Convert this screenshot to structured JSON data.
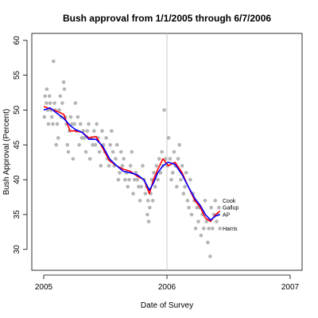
{
  "chart_data": {
    "type": "scatter",
    "title": "Bush approval from 1/1/2005 through 6/7/2006",
    "xlabel": "Date of Survey",
    "ylabel": "Bush Approval (Percent)",
    "xlim": [
      "2005-01-01",
      "2007-01-01"
    ],
    "ylim": [
      27,
      61
    ],
    "x_ticks": [
      "2005",
      "2006",
      "2007"
    ],
    "y_ticks": [
      30,
      35,
      40,
      45,
      50,
      55,
      60
    ],
    "reference_line": {
      "x": "2006-01-01",
      "color": "#c8c8c8"
    },
    "points_color": "#b4b4b4",
    "points": [
      [
        "2005-01-03",
        49
      ],
      [
        "2005-01-05",
        52
      ],
      [
        "2005-01-09",
        51
      ],
      [
        "2005-01-10",
        53
      ],
      [
        "2005-01-13",
        50
      ],
      [
        "2005-01-15",
        48
      ],
      [
        "2005-01-18",
        52
      ],
      [
        "2005-01-20",
        51
      ],
      [
        "2005-01-23",
        50
      ],
      [
        "2005-01-25",
        49
      ],
      [
        "2005-01-28",
        48
      ],
      [
        "2005-01-30",
        57
      ],
      [
        "2005-02-02",
        51
      ],
      [
        "2005-02-04",
        50
      ],
      [
        "2005-02-07",
        45
      ],
      [
        "2005-02-10",
        48
      ],
      [
        "2005-02-13",
        46
      ],
      [
        "2005-02-16",
        50
      ],
      [
        "2005-02-19",
        52
      ],
      [
        "2005-02-22",
        49
      ],
      [
        "2005-02-25",
        51
      ],
      [
        "2005-03-01",
        54
      ],
      [
        "2005-03-03",
        53
      ],
      [
        "2005-03-06",
        49
      ],
      [
        "2005-03-09",
        48
      ],
      [
        "2005-03-12",
        45
      ],
      [
        "2005-03-15",
        44
      ],
      [
        "2005-03-18",
        47
      ],
      [
        "2005-03-22",
        49
      ],
      [
        "2005-03-26",
        48
      ],
      [
        "2005-03-29",
        43
      ],
      [
        "2005-04-02",
        48
      ],
      [
        "2005-04-05",
        51
      ],
      [
        "2005-04-08",
        47
      ],
      [
        "2005-04-12",
        49
      ],
      [
        "2005-04-16",
        45
      ],
      [
        "2005-04-20",
        48
      ],
      [
        "2005-04-24",
        46
      ],
      [
        "2005-04-28",
        47
      ],
      [
        "2005-05-02",
        46
      ],
      [
        "2005-05-06",
        44
      ],
      [
        "2005-05-10",
        47
      ],
      [
        "2005-05-14",
        48
      ],
      [
        "2005-05-18",
        43
      ],
      [
        "2005-05-22",
        46
      ],
      [
        "2005-05-26",
        45
      ],
      [
        "2005-05-30",
        47
      ],
      [
        "2005-06-03",
        45
      ],
      [
        "2005-06-07",
        48
      ],
      [
        "2005-06-11",
        46
      ],
      [
        "2005-06-15",
        44
      ],
      [
        "2005-06-19",
        42
      ],
      [
        "2005-06-23",
        47
      ],
      [
        "2005-06-27",
        45
      ],
      [
        "2005-07-01",
        44
      ],
      [
        "2005-07-05",
        46
      ],
      [
        "2005-07-09",
        43
      ],
      [
        "2005-07-13",
        42
      ],
      [
        "2005-07-17",
        45
      ],
      [
        "2005-07-21",
        47
      ],
      [
        "2005-07-25",
        44
      ],
      [
        "2005-07-29",
        42
      ],
      [
        "2005-08-02",
        43
      ],
      [
        "2005-08-06",
        45
      ],
      [
        "2005-08-10",
        40
      ],
      [
        "2005-08-14",
        41
      ],
      [
        "2005-08-18",
        44
      ],
      [
        "2005-08-22",
        42
      ],
      [
        "2005-08-26",
        43
      ],
      [
        "2005-08-30",
        40
      ],
      [
        "2005-09-03",
        41
      ],
      [
        "2005-09-07",
        39
      ],
      [
        "2005-09-11",
        40
      ],
      [
        "2005-09-15",
        42
      ],
      [
        "2005-09-19",
        44
      ],
      [
        "2005-09-23",
        38
      ],
      [
        "2005-09-27",
        40
      ],
      [
        "2005-10-01",
        41
      ],
      [
        "2005-10-05",
        40
      ],
      [
        "2005-10-09",
        39
      ],
      [
        "2005-10-13",
        37
      ],
      [
        "2005-10-17",
        39
      ],
      [
        "2005-10-21",
        42
      ],
      [
        "2005-10-25",
        40
      ],
      [
        "2005-10-29",
        38
      ],
      [
        "2005-11-02",
        39
      ],
      [
        "2005-11-04",
        35
      ],
      [
        "2005-11-06",
        37
      ],
      [
        "2005-11-08",
        34
      ],
      [
        "2005-11-11",
        36
      ],
      [
        "2005-11-14",
        38
      ],
      [
        "2005-11-17",
        40
      ],
      [
        "2005-11-20",
        37
      ],
      [
        "2005-11-23",
        41
      ],
      [
        "2005-11-27",
        39
      ],
      [
        "2005-12-01",
        42
      ],
      [
        "2005-12-05",
        40
      ],
      [
        "2005-12-09",
        43
      ],
      [
        "2005-12-13",
        41
      ],
      [
        "2005-12-17",
        44
      ],
      [
        "2005-12-20",
        42
      ],
      [
        "2005-12-24",
        50
      ],
      [
        "2005-12-28",
        43
      ],
      [
        "2006-01-02",
        42
      ],
      [
        "2006-01-06",
        46
      ],
      [
        "2006-01-10",
        43
      ],
      [
        "2006-01-14",
        40
      ],
      [
        "2006-01-18",
        41
      ],
      [
        "2006-01-22",
        44
      ],
      [
        "2006-01-26",
        42
      ],
      [
        "2006-01-30",
        39
      ],
      [
        "2006-02-03",
        43
      ],
      [
        "2006-02-07",
        45
      ],
      [
        "2006-02-11",
        40
      ],
      [
        "2006-02-15",
        42
      ],
      [
        "2006-02-19",
        38
      ],
      [
        "2006-02-23",
        39
      ],
      [
        "2006-02-27",
        41
      ],
      [
        "2006-03-03",
        37
      ],
      [
        "2006-03-07",
        36
      ],
      [
        "2006-03-11",
        40
      ],
      [
        "2006-03-15",
        35
      ],
      [
        "2006-03-19",
        38
      ],
      [
        "2006-03-23",
        37
      ],
      [
        "2006-03-27",
        33
      ],
      [
        "2006-03-31",
        36
      ],
      [
        "2006-04-04",
        34
      ],
      [
        "2006-04-08",
        36
      ],
      [
        "2006-04-12",
        32
      ],
      [
        "2006-04-16",
        35
      ],
      [
        "2006-04-20",
        33
      ],
      [
        "2006-04-24",
        37
      ],
      [
        "2006-04-28",
        34
      ],
      [
        "2006-05-02",
        31
      ],
      [
        "2006-05-05",
        33
      ],
      [
        "2006-05-09",
        29
      ],
      [
        "2006-05-12",
        36
      ],
      [
        "2006-05-16",
        33
      ],
      [
        "2006-05-20",
        35
      ],
      [
        "2006-05-24",
        37
      ],
      [
        "2006-05-28",
        34
      ],
      [
        "2006-06-01",
        35
      ],
      [
        "2006-06-04",
        36
      ],
      [
        "2006-06-07",
        33
      ]
    ],
    "series": [
      {
        "color": "#ff0000",
        "x": [
          "2005-01-01",
          "2005-01-20",
          "2005-02-10",
          "2005-03-01",
          "2005-03-20",
          "2005-04-05",
          "2005-04-25",
          "2005-05-15",
          "2005-06-05",
          "2005-06-25",
          "2005-07-15",
          "2005-08-05",
          "2005-08-25",
          "2005-09-15",
          "2005-10-05",
          "2005-10-25",
          "2005-11-10",
          "2005-11-22",
          "2005-12-05",
          "2005-12-20",
          "2006-01-05",
          "2006-01-25",
          "2006-02-15",
          "2006-03-05",
          "2006-03-25",
          "2006-04-10",
          "2006-04-25",
          "2006-05-10",
          "2006-05-25",
          "2006-06-07"
        ],
        "values": [
          50.5,
          50.2,
          49.8,
          49.4,
          47.0,
          47.0,
          46.8,
          46.0,
          46.2,
          44.5,
          42.7,
          42.0,
          41.5,
          41.2,
          40.5,
          40.0,
          38.0,
          40.0,
          41.5,
          43.0,
          42.0,
          42.5,
          41.0,
          39.0,
          37.0,
          36.0,
          34.5,
          34.0,
          35.0,
          35.5
        ]
      },
      {
        "color": "#0000ff",
        "x": [
          "2005-01-01",
          "2005-01-20",
          "2005-02-10",
          "2005-03-01",
          "2005-03-20",
          "2005-04-05",
          "2005-04-25",
          "2005-05-15",
          "2005-06-05",
          "2005-06-25",
          "2005-07-15",
          "2005-08-05",
          "2005-08-25",
          "2005-09-15",
          "2005-10-05",
          "2005-10-25",
          "2005-11-10",
          "2005-11-22",
          "2005-12-05",
          "2005-12-20",
          "2006-01-05",
          "2006-01-25",
          "2006-02-15",
          "2006-03-05",
          "2006-03-25",
          "2006-04-10",
          "2006-04-25",
          "2006-05-10",
          "2006-05-25",
          "2006-06-07"
        ],
        "values": [
          50.0,
          50.3,
          49.5,
          48.8,
          47.8,
          47.2,
          46.8,
          45.8,
          45.8,
          44.8,
          43.0,
          42.0,
          41.2,
          41.0,
          40.7,
          40.0,
          38.5,
          39.5,
          41.0,
          42.0,
          42.5,
          42.2,
          40.7,
          39.0,
          37.3,
          36.3,
          35.0,
          34.2,
          34.8,
          35.0
        ]
      }
    ],
    "end_labels": [
      {
        "text": "Cook",
        "y": 37
      },
      {
        "text": "Gallup",
        "y": 36
      },
      {
        "text": "AP",
        "y": 35
      },
      {
        "text": "Harris",
        "y": 33
      }
    ]
  }
}
